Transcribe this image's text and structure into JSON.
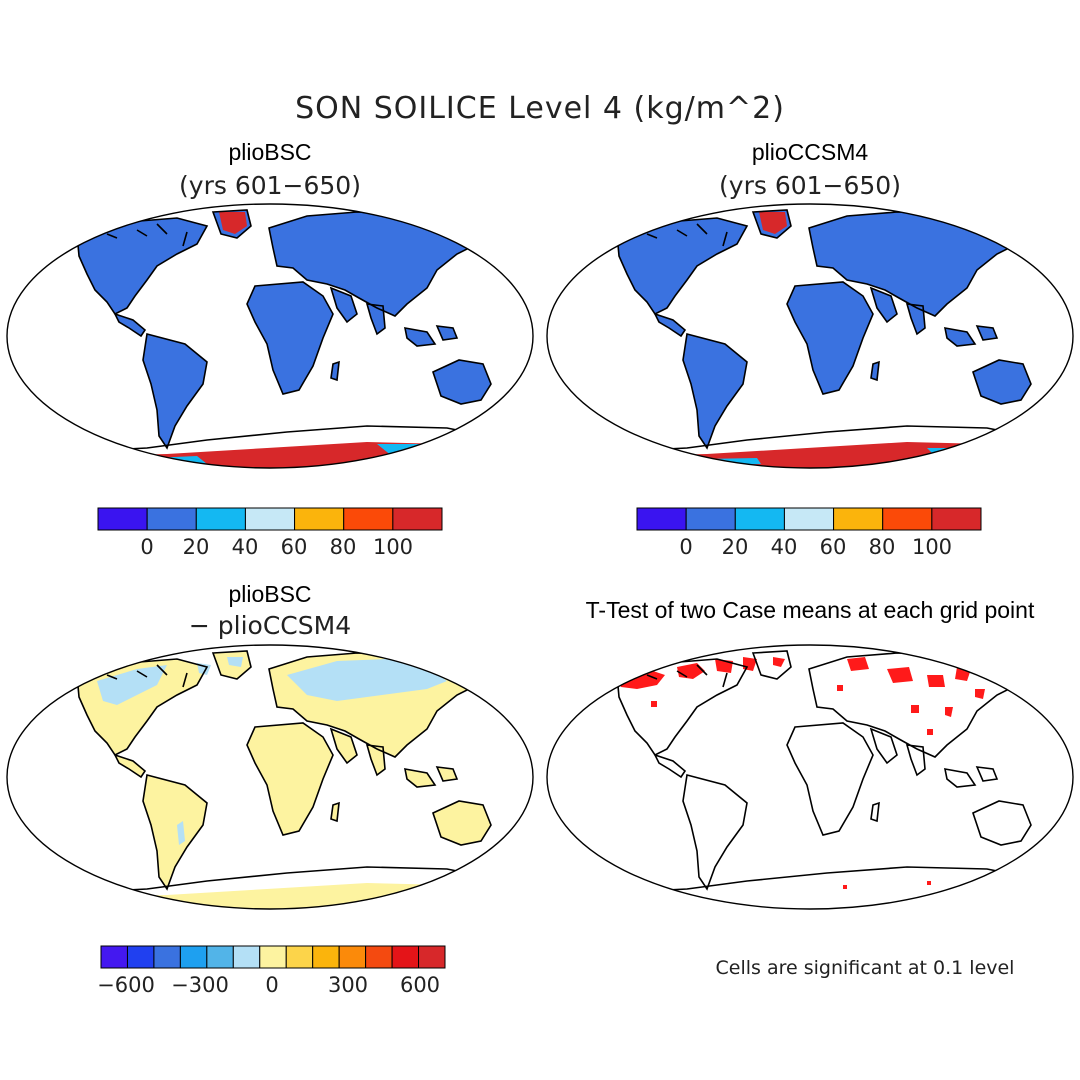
{
  "figure": {
    "title": "SON SOILICE Level 4 (kg/m^2)"
  },
  "panels": [
    {
      "title": "plioBSC",
      "subtitle": "(yrs 601−650)"
    },
    {
      "title": "plioCCSM4",
      "subtitle": "(yrs 601−650)"
    },
    {
      "title": "plioBSC",
      "subtitle": "− plioCCSM4"
    },
    {
      "title": "T-Test of two Case means at each grid point",
      "subtitle": ""
    }
  ],
  "colorbar_abs": {
    "colors": [
      "#3a14f0",
      "#3a72e0",
      "#14b8f2",
      "#c6e8f6",
      "#fbb40c",
      "#fb4a08",
      "#d7282a"
    ],
    "ticks": [
      "0",
      "20",
      "40",
      "60",
      "80",
      "100"
    ]
  },
  "colorbar_diff": {
    "colors": [
      "#4418f0",
      "#2040f0",
      "#3a72e0",
      "#1ea0f0",
      "#52b4e8",
      "#b4e0f6",
      "#fdf3a0",
      "#fcd44a",
      "#fbb40c",
      "#fb8a0a",
      "#f44a10",
      "#e41418",
      "#d7282a"
    ],
    "ticks": [
      "−600",
      "−300",
      "0",
      "300",
      "600"
    ]
  },
  "ttest_note": "Cells are significant at 0.1 level",
  "map_fills": {
    "land_abs": "#3a72e0",
    "greenland_abs": "#d7282a",
    "antarctica_abs": "#d7282a",
    "antarctica_coast_abs": "#14b8f2",
    "land_diff": "#fdf3a0",
    "diff_north": "#b4e0f6",
    "ttest_sig": "#ff1a1a"
  }
}
